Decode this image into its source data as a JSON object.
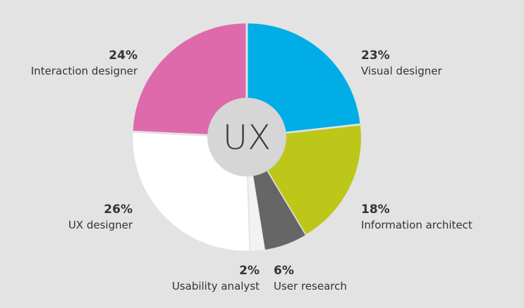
{
  "chart_data": {
    "type": "pie",
    "center_label": "UX",
    "slices": [
      {
        "label": "Visual designer",
        "value": 23,
        "value_label": "23%",
        "color": "#00ade6"
      },
      {
        "label": "Information architect",
        "value": 18,
        "value_label": "18%",
        "color": "#bdc71a"
      },
      {
        "label": "User research",
        "value": 6,
        "value_label": "6%",
        "color": "#666666"
      },
      {
        "label": "Usability analyst",
        "value": 2,
        "value_label": "2%",
        "color": "#f2f2f2"
      },
      {
        "label": "UX designer",
        "value": 26,
        "value_label": "26%",
        "color": "#ffffff"
      },
      {
        "label": "Interaction designer",
        "value": 24,
        "value_label": "24%",
        "color": "#de6aac"
      }
    ],
    "center_color": "#d6d6d6",
    "background": "#e3e3e3"
  }
}
